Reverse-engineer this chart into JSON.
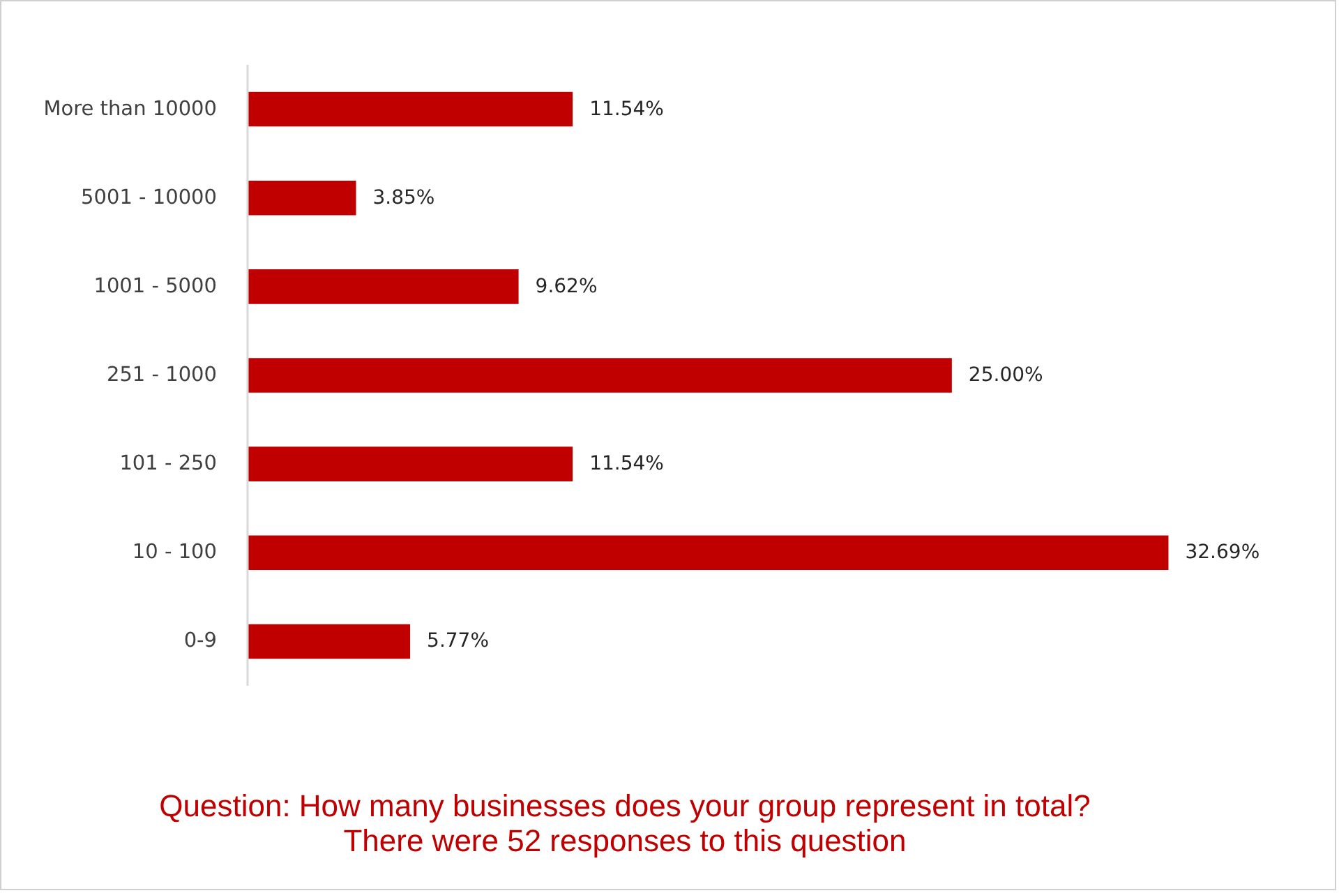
{
  "chart_data": {
    "type": "bar",
    "orientation": "horizontal",
    "categories": [
      "More than 10000",
      "5001 - 10000",
      "1001 - 5000",
      "251 - 1000",
      "101 - 250",
      "10 - 100",
      "0-9"
    ],
    "values": [
      11.54,
      3.85,
      9.62,
      25.0,
      11.54,
      32.69,
      5.77
    ],
    "value_labels": [
      "11.54%",
      "3.85%",
      "9.62%",
      "25.00%",
      "11.54%",
      "32.69%",
      "5.77%"
    ],
    "color": "#c00000",
    "annotations": [
      "Question: How many businesses does your group represent in total?",
      "There were 52 responses to this question"
    ]
  }
}
